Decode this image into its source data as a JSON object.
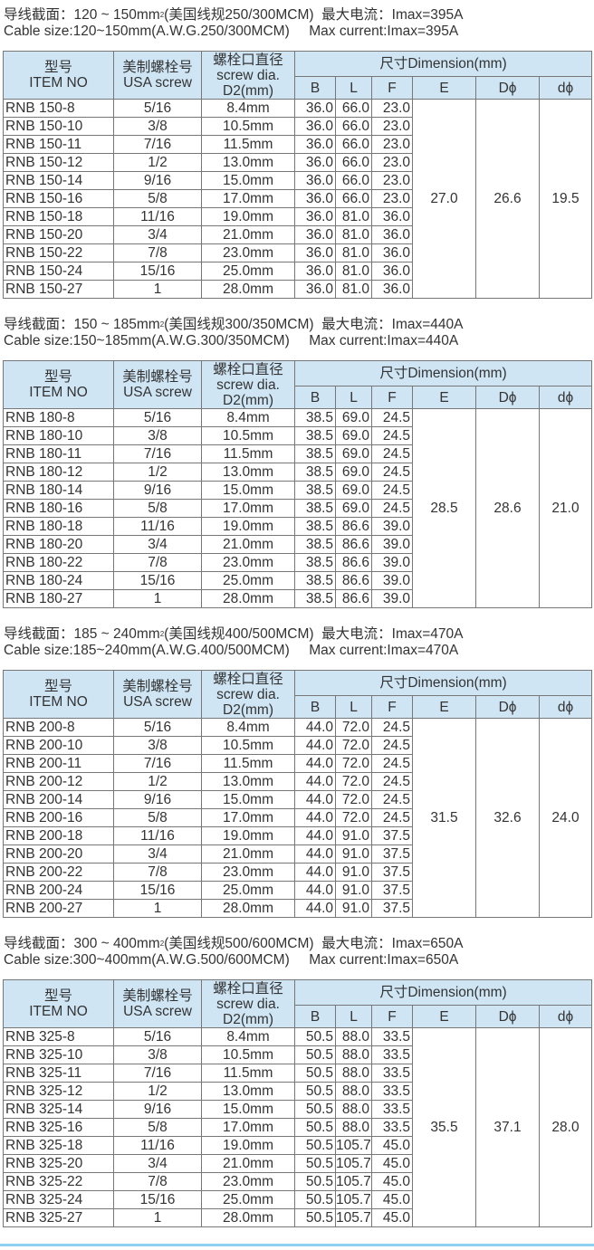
{
  "headers": {
    "item_cn": "型号",
    "item_en": "ITEM NO",
    "screw_cn": "美制螺栓号",
    "screw_en": "USA screw",
    "dia_cn": "螺栓口直径",
    "dia_en1": "screw dia.",
    "dia_en2": "D2(mm)",
    "dim": "尺寸Dimension(mm)",
    "B": "B",
    "L": "L",
    "F": "F",
    "E": "E",
    "D": "Dϕ",
    "d": "dϕ"
  },
  "sections": [
    {
      "title_cn_a": "导线截面：120 ~ 150mm",
      "title_cn_b": "(美国线规250/300MCM)  最大电流：Imax=395A",
      "title_en": "Cable size:120~150mm(A.W.G.250/300MCM)     Max current:Imax=395A",
      "E": "27.0",
      "D": "26.6",
      "d": "19.5",
      "rows": [
        [
          "RNB  150-8",
          "5/16",
          "8.4mm",
          "36.0",
          "66.0",
          "23.0"
        ],
        [
          "RNB  150-10",
          "3/8",
          "10.5mm",
          "36.0",
          "66.0",
          "23.0"
        ],
        [
          "RNB  150-11",
          "7/16",
          "11.5mm",
          "36.0",
          "66.0",
          "23.0"
        ],
        [
          "RNB  150-12",
          "1/2",
          "13.0mm",
          "36.0",
          "66.0",
          "23.0"
        ],
        [
          "RNB  150-14",
          "9/16",
          "15.0mm",
          "36.0",
          "66.0",
          "23.0"
        ],
        [
          "RNB  150-16",
          "5/8",
          "17.0mm",
          "36.0",
          "66.0",
          "23.0"
        ],
        [
          "RNB  150-18",
          "11/16",
          "19.0mm",
          "36.0",
          "81.0",
          "36.0"
        ],
        [
          "RNB  150-20",
          "3/4",
          "21.0mm",
          "36.0",
          "81.0",
          "36.0"
        ],
        [
          "RNB  150-22",
          "7/8",
          "23.0mm",
          "36.0",
          "81.0",
          "36.0"
        ],
        [
          "RNB  150-24",
          "15/16",
          "25.0mm",
          "36.0",
          "81.0",
          "36.0"
        ],
        [
          "RNB  150-27",
          "1",
          "28.0mm",
          "36.0",
          "81.0",
          "36.0"
        ]
      ]
    },
    {
      "title_cn_a": "导线截面：150 ~ 185mm",
      "title_cn_b": "(美国线规300/350MCM)  最大电流：Imax=440A",
      "title_en": "Cable size:150~185mm(A.W.G.300/350MCM)     Max current:Imax=440A",
      "E": "28.5",
      "D": "28.6",
      "d": "21.0",
      "rows": [
        [
          "RNB  180-8",
          "5/16",
          "8.4mm",
          "38.5",
          "69.0",
          "24.5"
        ],
        [
          "RNB  180-10",
          "3/8",
          "10.5mm",
          "38.5",
          "69.0",
          "24.5"
        ],
        [
          "RNB  180-11",
          "7/16",
          "11.5mm",
          "38.5",
          "69.0",
          "24.5"
        ],
        [
          "RNB  180-12",
          "1/2",
          "13.0mm",
          "38.5",
          "69.0",
          "24.5"
        ],
        [
          "RNB  180-14",
          "9/16",
          "15.0mm",
          "38.5",
          "69.0",
          "24.5"
        ],
        [
          "RNB  180-16",
          "5/8",
          "17.0mm",
          "38.5",
          "69.0",
          "24.5"
        ],
        [
          "RNB  180-18",
          "11/16",
          "19.0mm",
          "38.5",
          "86.6",
          "39.0"
        ],
        [
          "RNB  180-20",
          "3/4",
          "21.0mm",
          "38.5",
          "86.6",
          "39.0"
        ],
        [
          "RNB  180-22",
          "7/8",
          "23.0mm",
          "38.5",
          "86.6",
          "39.0"
        ],
        [
          "RNB  180-24",
          "15/16",
          "25.0mm",
          "38.5",
          "86.6",
          "39.0"
        ],
        [
          "RNB  180-27",
          "1",
          "28.0mm",
          "38.5",
          "86.6",
          "39.0"
        ]
      ]
    },
    {
      "title_cn_a": "导线截面：185 ~ 240mm",
      "title_cn_b": "(美国线规400/500MCM)  最大电流：Imax=470A",
      "title_en": "Cable size:185~240mm(A.W.G.400/500MCM)     Max current:Imax=470A",
      "E": "31.5",
      "D": "32.6",
      "d": "24.0",
      "rows": [
        [
          "RNB  200-8",
          "5/16",
          "8.4mm",
          "44.0",
          "72.0",
          "24.5"
        ],
        [
          "RNB  200-10",
          "3/8",
          "10.5mm",
          "44.0",
          "72.0",
          "24.5"
        ],
        [
          "RNB  200-11",
          "7/16",
          "11.5mm",
          "44.0",
          "72.0",
          "24.5"
        ],
        [
          "RNB  200-12",
          "1/2",
          "13.0mm",
          "44.0",
          "72.0",
          "24.5"
        ],
        [
          "RNB  200-14",
          "9/16",
          "15.0mm",
          "44.0",
          "72.0",
          "24.5"
        ],
        [
          "RNB  200-16",
          "5/8",
          "17.0mm",
          "44.0",
          "72.0",
          "24.5"
        ],
        [
          "RNB  200-18",
          "11/16",
          "19.0mm",
          "44.0",
          "91.0",
          "37.5"
        ],
        [
          "RNB  200-20",
          "3/4",
          "21.0mm",
          "44.0",
          "91.0",
          "37.5"
        ],
        [
          "RNB  200-22",
          "7/8",
          "23.0mm",
          "44.0",
          "91.0",
          "37.5"
        ],
        [
          "RNB  200-24",
          "15/16",
          "25.0mm",
          "44.0",
          "91.0",
          "37.5"
        ],
        [
          "RNB  200-27",
          "1",
          "28.0mm",
          "44.0",
          "91.0",
          "37.5"
        ]
      ]
    },
    {
      "title_cn_a": "导线截面：300 ~ 400mm",
      "title_cn_b": "(美国线规500/600MCM)  最大电流：Imax=650A",
      "title_en": "Cable size:300~400mm(A.W.G.500/600MCM)     Max current:Imax=650A",
      "E": "35.5",
      "D": "37.1",
      "d": "28.0",
      "rows": [
        [
          "RNB  325-8",
          "5/16",
          "8.4mm",
          "50.5",
          "88.0",
          "33.5"
        ],
        [
          "RNB  325-10",
          "3/8",
          "10.5mm",
          "50.5",
          "88.0",
          "33.5"
        ],
        [
          "RNB  325-11",
          "7/16",
          "11.5mm",
          "50.5",
          "88.0",
          "33.5"
        ],
        [
          "RNB  325-12",
          "1/2",
          "13.0mm",
          "50.5",
          "88.0",
          "33.5"
        ],
        [
          "RNB  325-14",
          "9/16",
          "15.0mm",
          "50.5",
          "88.0",
          "33.5"
        ],
        [
          "RNB  325-16",
          "5/8",
          "17.0mm",
          "50.5",
          "88.0",
          "33.5"
        ],
        [
          "RNB  325-18",
          "11/16",
          "19.0mm",
          "50.5",
          "105.7",
          "45.0"
        ],
        [
          "RNB  325-20",
          "3/4",
          "21.0mm",
          "50.5",
          "105.7",
          "45.0"
        ],
        [
          "RNB  325-22",
          "7/8",
          "23.0mm",
          "50.5",
          "105.7",
          "45.0"
        ],
        [
          "RNB  325-24",
          "15/16",
          "25.0mm",
          "50.5",
          "105.7",
          "45.0"
        ],
        [
          "RNB  325-27",
          "1",
          "28.0mm",
          "50.5",
          "105.7",
          "45.0"
        ]
      ]
    }
  ]
}
